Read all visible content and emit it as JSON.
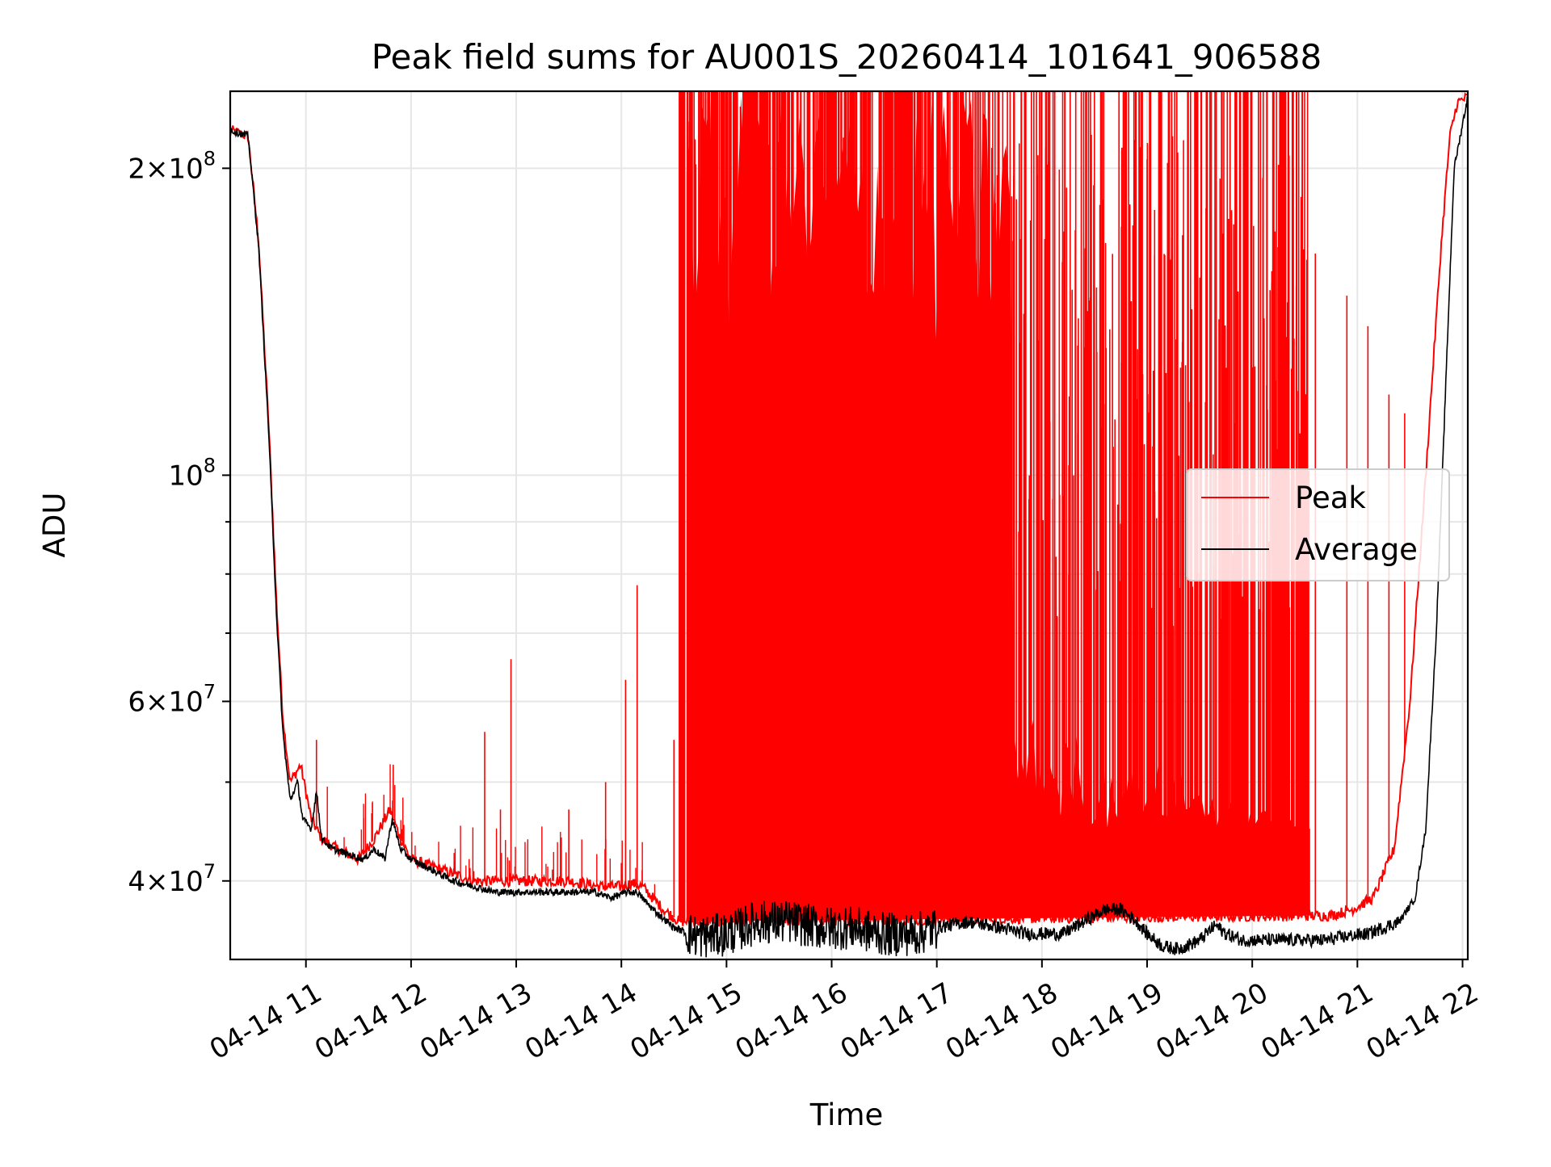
{
  "chart_data": {
    "type": "line",
    "title": "Peak field sums for AU001S_20260414_101641_906588",
    "xlabel": "Time",
    "ylabel": "ADU",
    "yscale": "log",
    "xlim": [
      10.28,
      22.05
    ],
    "ylim": [
      33500000,
      238000000
    ],
    "x_ticks": [
      {
        "value": 11,
        "label": "04-14 11"
      },
      {
        "value": 12,
        "label": "04-14 12"
      },
      {
        "value": 13,
        "label": "04-14 13"
      },
      {
        "value": 14,
        "label": "04-14 14"
      },
      {
        "value": 15,
        "label": "04-14 15"
      },
      {
        "value": 16,
        "label": "04-14 16"
      },
      {
        "value": 17,
        "label": "04-14 17"
      },
      {
        "value": 18,
        "label": "04-14 18"
      },
      {
        "value": 19,
        "label": "04-14 19"
      },
      {
        "value": 20,
        "label": "04-14 20"
      },
      {
        "value": 21,
        "label": "04-14 21"
      },
      {
        "value": 22,
        "label": "04-14 22"
      }
    ],
    "y_major_ticks": [
      {
        "value": 40000000,
        "mant": "4",
        "exp": "7"
      },
      {
        "value": 60000000,
        "mant": "6",
        "exp": "7"
      },
      {
        "value": 100000000,
        "mant": "",
        "exp": "8"
      },
      {
        "value": 200000000,
        "mant": "2",
        "exp": "8"
      }
    ],
    "y_minor_ticks": [
      50000000,
      70000000,
      80000000,
      90000000
    ],
    "grid": true,
    "legend_position": "center-right",
    "series": [
      {
        "name": "Peak",
        "color": "#ff0000",
        "x": [
          10.28,
          10.45,
          10.55,
          10.65,
          10.72,
          10.78,
          10.85,
          10.95,
          11.05,
          11.15,
          11.3,
          11.5,
          11.65,
          11.8,
          11.9,
          12.0,
          12.3,
          12.6,
          12.9,
          13.2,
          13.5,
          13.8,
          14.0,
          14.1,
          14.2,
          14.4,
          14.55,
          20.55,
          20.75,
          20.95,
          21.15,
          21.35,
          21.5,
          21.65,
          21.8,
          21.88,
          21.95,
          22.05
        ],
        "y": [
          218000000,
          215000000,
          170000000,
          110000000,
          75000000,
          58000000,
          50000000,
          52000000,
          46000000,
          44000000,
          43000000,
          42000000,
          44000000,
          47000000,
          44000000,
          42000000,
          41000000,
          40000000,
          40000000,
          40000000,
          40000000,
          39500000,
          39500000,
          39800000,
          39500000,
          37500000,
          36500000,
          37000000,
          37000000,
          37500000,
          38500000,
          43000000,
          60000000,
          100000000,
          170000000,
          215000000,
          232000000,
          235000000
        ],
        "band_x": [
          14.55,
          20.55
        ],
        "band_top": 238000000,
        "spikes": [
          {
            "x": 11.1,
            "y": 55000000
          },
          {
            "x": 11.83,
            "y": 52000000
          },
          {
            "x": 12.7,
            "y": 56000000
          },
          {
            "x": 12.85,
            "y": 47000000
          },
          {
            "x": 12.95,
            "y": 66000000
          },
          {
            "x": 13.5,
            "y": 47000000
          },
          {
            "x": 13.85,
            "y": 50000000
          },
          {
            "x": 14.04,
            "y": 63000000
          },
          {
            "x": 14.15,
            "y": 78000000
          },
          {
            "x": 14.5,
            "y": 55000000
          },
          {
            "x": 20.6,
            "y": 165000000
          },
          {
            "x": 20.9,
            "y": 150000000
          },
          {
            "x": 21.1,
            "y": 140000000
          },
          {
            "x": 21.3,
            "y": 120000000
          },
          {
            "x": 21.45,
            "y": 115000000
          }
        ]
      },
      {
        "name": "Average",
        "color": "#000000",
        "x": [
          10.28,
          10.45,
          10.55,
          10.65,
          10.72,
          10.78,
          10.85,
          10.92,
          10.97,
          11.05,
          11.1,
          11.15,
          11.25,
          11.4,
          11.55,
          11.65,
          11.75,
          11.82,
          11.9,
          12.0,
          12.2,
          12.4,
          12.6,
          12.8,
          13.0,
          13.2,
          13.5,
          13.75,
          13.9,
          14.05,
          14.15,
          14.3,
          14.5,
          14.65,
          14.75,
          15.0,
          15.3,
          15.6,
          15.9,
          16.2,
          16.5,
          16.8,
          17.0,
          17.3,
          17.6,
          17.85,
          18.0,
          18.2,
          18.4,
          18.6,
          18.75,
          18.9,
          19.0,
          19.15,
          19.3,
          19.5,
          19.65,
          19.75,
          19.9,
          20.1,
          20.3,
          20.5,
          20.7,
          20.9,
          21.1,
          21.25,
          21.4,
          21.55,
          21.65,
          21.75,
          21.85,
          21.92,
          22.05
        ],
        "y": [
          218000000,
          215000000,
          168000000,
          108000000,
          73000000,
          56000000,
          48000000,
          50000000,
          46000000,
          45000000,
          49000000,
          44000000,
          43000000,
          42500000,
          42000000,
          43000000,
          42000000,
          46000000,
          43000000,
          42000000,
          41000000,
          40000000,
          39500000,
          39000000,
          39000000,
          39000000,
          39000000,
          39000000,
          38500000,
          39000000,
          39000000,
          37500000,
          36000000,
          35500000,
          35300000,
          35500000,
          36500000,
          36500000,
          36000000,
          36000000,
          35500000,
          35500000,
          36000000,
          36500000,
          36000000,
          35500000,
          35500000,
          35500000,
          36500000,
          37500000,
          37500000,
          36500000,
          35500000,
          34500000,
          34300000,
          35000000,
          36200000,
          35500000,
          35000000,
          35000000,
          35000000,
          35000000,
          35000000,
          35300000,
          35500000,
          36000000,
          36500000,
          38500000,
          45000000,
          70000000,
          130000000,
          200000000,
          235000000
        ],
        "noise_x": [
          14.6,
          17.0
        ],
        "noise_amp": 0.05
      }
    ]
  }
}
